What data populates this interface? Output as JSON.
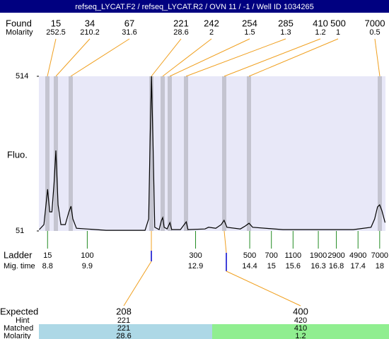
{
  "header": {
    "title": "refseq_LYCAT.F2 / refseq_LYCAT.R2 / OVN 11 / -1 / Well ID 1034265"
  },
  "found": {
    "label": "Found",
    "molarity_label": "Molarity",
    "sizes": [
      15,
      34,
      67,
      221,
      242,
      254,
      285,
      410,
      500,
      7000
    ],
    "molarity": [
      252.5,
      210.2,
      31.6,
      28.6,
      2,
      1.5,
      1.3,
      1.2,
      1,
      0.5
    ]
  },
  "plot": {
    "y_label": "Fluo.",
    "ylim": [
      51,
      514
    ],
    "yticks": [
      51,
      514
    ],
    "xlim": [
      8.56,
      18.16
    ],
    "trace": {
      "x": [
        8.57,
        8.7,
        8.8,
        8.86,
        8.92,
        8.98,
        9.03,
        9.09,
        9.17,
        9.29,
        9.39,
        9.45,
        9.5,
        9.6,
        10.42,
        11.5,
        11.6,
        11.64,
        11.68,
        11.72,
        11.77,
        11.89,
        11.95,
        11.99,
        12.03,
        12.11,
        12.19,
        12.24,
        12.48,
        12.64,
        12.69,
        13.16,
        13.26,
        13.46,
        13.61,
        13.69,
        13.77,
        14.14,
        14.28,
        14.38,
        14.48,
        15.32,
        17.27,
        17.76,
        17.86,
        17.94,
        18.0,
        18.06,
        18.15
      ],
      "y": [
        55,
        70,
        176,
        108,
        108,
        193,
        292,
        129,
        70,
        70,
        108,
        125,
        87,
        59,
        53,
        53,
        87,
        319,
        514,
        319,
        62,
        55,
        81,
        91,
        62,
        57,
        76,
        55,
        55,
        78,
        55,
        57,
        62,
        59,
        70,
        83,
        62,
        57,
        66,
        74,
        62,
        55,
        55,
        62,
        87,
        123,
        129,
        112,
        76
      ]
    }
  },
  "ladder": {
    "label": "Ladder",
    "time_label": "Mig. time",
    "sizes": [
      15,
      100,
      300,
      500,
      700,
      1100,
      1900,
      2900,
      4900,
      7000
    ],
    "times": [
      8.8,
      9.9,
      12.9,
      14.4,
      15,
      15.6,
      16.3,
      16.8,
      17.4,
      18
    ]
  },
  "expected": {
    "label": "Expected",
    "hint_label": "Hint",
    "matched_label": "Matched",
    "molarity_label": "Molarity",
    "peaks": [
      {
        "expected": 208,
        "hint": 221,
        "matched": 221,
        "molarity": 28.6
      },
      {
        "expected": 400,
        "hint": 420,
        "matched": 410,
        "molarity": 1.2
      }
    ]
  }
}
